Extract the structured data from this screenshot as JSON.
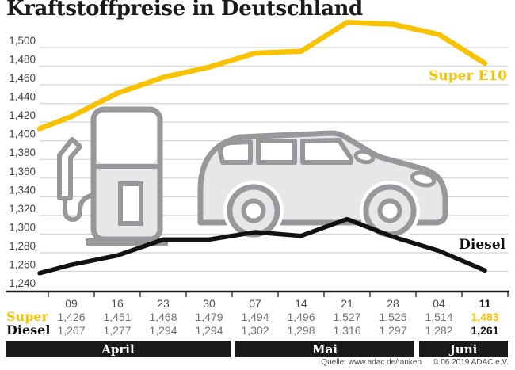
{
  "title": "Kraftstoffpreise in Deutschland",
  "colors": {
    "accent_yellow": "#F9C200",
    "diesel_black": "#111111",
    "grid_gray": "#d8d8d8",
    "axis_black": "#1a1a1a",
    "value_gray": "#6f6f6f",
    "illustration_gray": "#98989c",
    "illustration_fill": "#e7e7e9",
    "month_band_bg": "#1a1a1a"
  },
  "chart_data": {
    "type": "line",
    "title": "Kraftstoffpreise in Deutschland",
    "xlabel": "",
    "ylabel": "",
    "grid": true,
    "ylim": [
      1240,
      1500
    ],
    "ytick_step": 20,
    "categories": [
      "09",
      "16",
      "23",
      "30",
      "07",
      "14",
      "21",
      "28",
      "04",
      "11"
    ],
    "series": [
      {
        "name": "Super E10",
        "color": "#F9C200",
        "lead_in": 1413,
        "values": [
          1426,
          1451,
          1468,
          1479,
          1494,
          1496,
          1527,
          1525,
          1514,
          1483
        ]
      },
      {
        "name": "Diesel",
        "color": "#111111",
        "lead_in": 1258,
        "values": [
          1267,
          1277,
          1294,
          1294,
          1302,
          1298,
          1316,
          1297,
          1282,
          1261
        ]
      }
    ],
    "months": [
      {
        "label": "April",
        "span": 4
      },
      {
        "label": "Mai",
        "span": 4
      },
      {
        "label": "Juni",
        "span": 2
      }
    ],
    "legend_position": "inline-right"
  },
  "table": {
    "dates": [
      "09",
      "16",
      "23",
      "30",
      "07",
      "14",
      "21",
      "28",
      "04",
      "11"
    ],
    "rows": [
      {
        "label": "Super",
        "values": [
          "1,426",
          "1,451",
          "1,468",
          "1,479",
          "1,494",
          "1,496",
          "1,527",
          "1,525",
          "1,514",
          "1,483"
        ]
      },
      {
        "label": "Diesel",
        "values": [
          "1,267",
          "1,277",
          "1,294",
          "1,294",
          "1,302",
          "1,298",
          "1,316",
          "1,297",
          "1,282",
          "1,261"
        ]
      }
    ],
    "highlight_index": 9
  },
  "footer": {
    "source": "Quelle: www.adac.de/tanken",
    "copyright": "© 06.2019  ADAC e.V."
  }
}
